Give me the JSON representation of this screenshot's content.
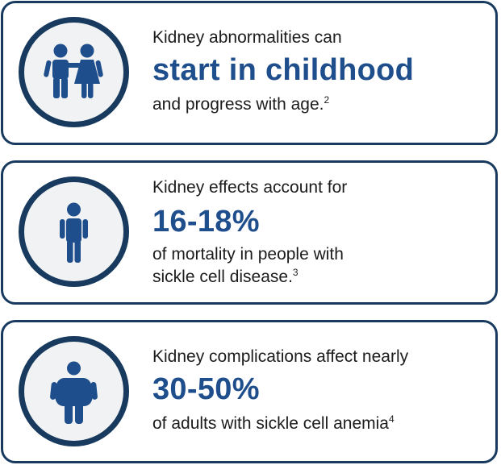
{
  "colors": {
    "border": "#173a5e",
    "accent": "#1f4e8c",
    "icon_fill": "#1f4e8c",
    "circle_bg": "#f1f2f3",
    "text": "#1c1c1c"
  },
  "cards": [
    {
      "icon": "children-icon",
      "lead": "Kidney abnormalities can",
      "highlight": "start in childhood",
      "tail_lines": [
        "and progress with age."
      ],
      "footnote": "2"
    },
    {
      "icon": "person-slim-icon",
      "lead": "Kidney effects account for",
      "highlight": "16-18%",
      "tail_lines": [
        "of mortality in people with",
        "sickle cell disease."
      ],
      "footnote": "3"
    },
    {
      "icon": "person-large-icon",
      "lead": "Kidney complications affect nearly",
      "highlight": "30-50%",
      "tail_lines": [
        "of adults with sickle cell anemia"
      ],
      "footnote": "4"
    }
  ]
}
